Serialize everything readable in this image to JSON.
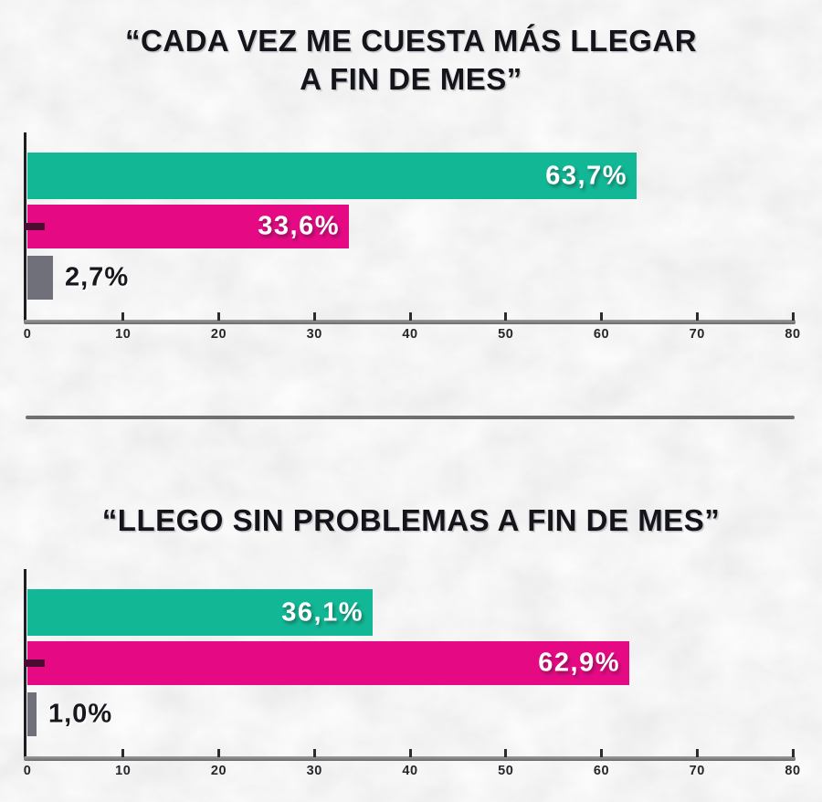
{
  "page": {
    "background_color": "#ececec",
    "divider_color": "#6f6f6f"
  },
  "axis_style": {
    "line_color": "#8a8a8a",
    "tick_color": "#2b2b30",
    "tick_label_color": "#26262b",
    "category_tick_color": "#4a0c2f",
    "spine_color": "#1d1d22"
  },
  "chart_data": [
    {
      "type": "bar",
      "orientation": "horizontal",
      "title": "“CADA VEZ ME CUESTA MÁS LLEGAR A FIN DE MES”",
      "title_lines": [
        "“CADA VEZ ME CUESTA MÁS LLEGAR",
        "A FIN DE MES”"
      ],
      "xlim": [
        0,
        80
      ],
      "x_ticks": [
        0,
        10,
        20,
        30,
        40,
        50,
        60,
        70,
        80
      ],
      "grid": false,
      "legend_position": "none",
      "bars": [
        {
          "name": "teal",
          "value": 63.7,
          "label": "63,7%",
          "color": "#12b795",
          "label_color": "#ffffff",
          "label_placement": "inside"
        },
        {
          "name": "magenta",
          "value": 33.6,
          "label": "33,6%",
          "color": "#e50a84",
          "label_color": "#ffffff",
          "label_placement": "inside"
        },
        {
          "name": "gray",
          "value": 2.7,
          "label": "2,7%",
          "color": "#70707a",
          "label_color": "#17171e",
          "label_placement": "outside"
        }
      ]
    },
    {
      "type": "bar",
      "orientation": "horizontal",
      "title": "“LLEGO SIN PROBLEMAS A FIN DE MES”",
      "title_lines": [
        "“LLEGO SIN PROBLEMAS A FIN DE MES”"
      ],
      "xlim": [
        0,
        80
      ],
      "x_ticks": [
        0,
        10,
        20,
        30,
        40,
        50,
        60,
        70,
        80
      ],
      "grid": false,
      "legend_position": "none",
      "bars": [
        {
          "name": "teal",
          "value": 36.1,
          "label": "36,1%",
          "color": "#12b795",
          "label_color": "#ffffff",
          "label_placement": "inside"
        },
        {
          "name": "magenta",
          "value": 62.9,
          "label": "62,9%",
          "color": "#e50a84",
          "label_color": "#ffffff",
          "label_placement": "inside"
        },
        {
          "name": "gray",
          "value": 1.0,
          "label": "1,0%",
          "color": "#70707a",
          "label_color": "#17171e",
          "label_placement": "outside"
        }
      ]
    }
  ]
}
